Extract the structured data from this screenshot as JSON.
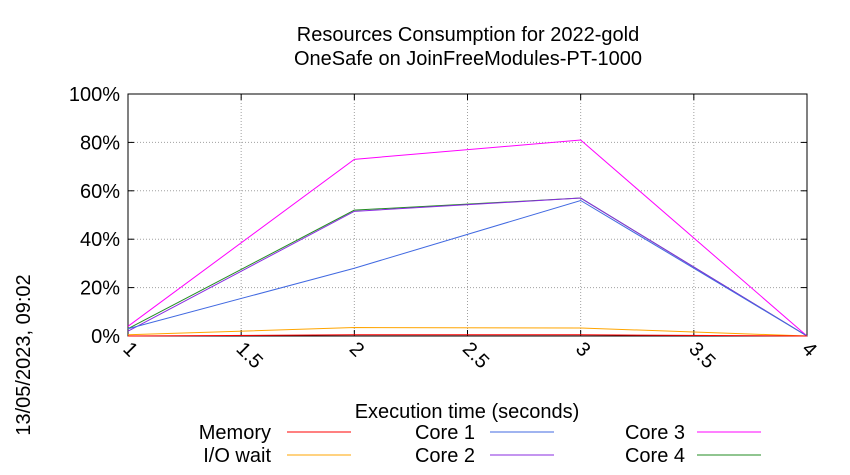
{
  "chart_data": {
    "type": "line",
    "title": [
      "Resources Consumption for 2022-gold",
      "OneSafe on JoinFreeModules-PT-1000"
    ],
    "xlabel": "Execution time (seconds)",
    "side_label": "13/05/2023, 09:02",
    "xlim": [
      1,
      4
    ],
    "ylim": [
      0,
      100
    ],
    "xticks": [
      1,
      1.5,
      2,
      2.5,
      3,
      3.5,
      4
    ],
    "xtick_labels": [
      "1",
      "1.5",
      "2",
      "2.5",
      "3",
      "3.5",
      "4"
    ],
    "yticks": [
      0,
      20,
      40,
      60,
      80,
      100
    ],
    "ytick_labels": [
      "0%",
      "20%",
      "40%",
      "60%",
      "80%",
      "100%"
    ],
    "grid": true,
    "legend_position": "bottom",
    "x": [
      1,
      2,
      3,
      4
    ],
    "series": [
      {
        "name": "Memory",
        "color": "#ff0000",
        "values": [
          0,
          0.5,
          0.5,
          0
        ]
      },
      {
        "name": "I/O wait",
        "color": "#ffa500",
        "values": [
          0.5,
          3.5,
          3.3,
          0
        ]
      },
      {
        "name": "Core 1",
        "color": "#4169e1",
        "values": [
          3,
          28,
          56,
          0
        ]
      },
      {
        "name": "Core 2",
        "color": "#8a2be2",
        "values": [
          2,
          51.5,
          57,
          0
        ]
      },
      {
        "name": "Core 3",
        "color": "#ff00ff",
        "values": [
          4,
          73,
          81,
          0
        ]
      },
      {
        "name": "Core 4",
        "color": "#228b22",
        "values": [
          3,
          52,
          57,
          0
        ]
      }
    ]
  }
}
